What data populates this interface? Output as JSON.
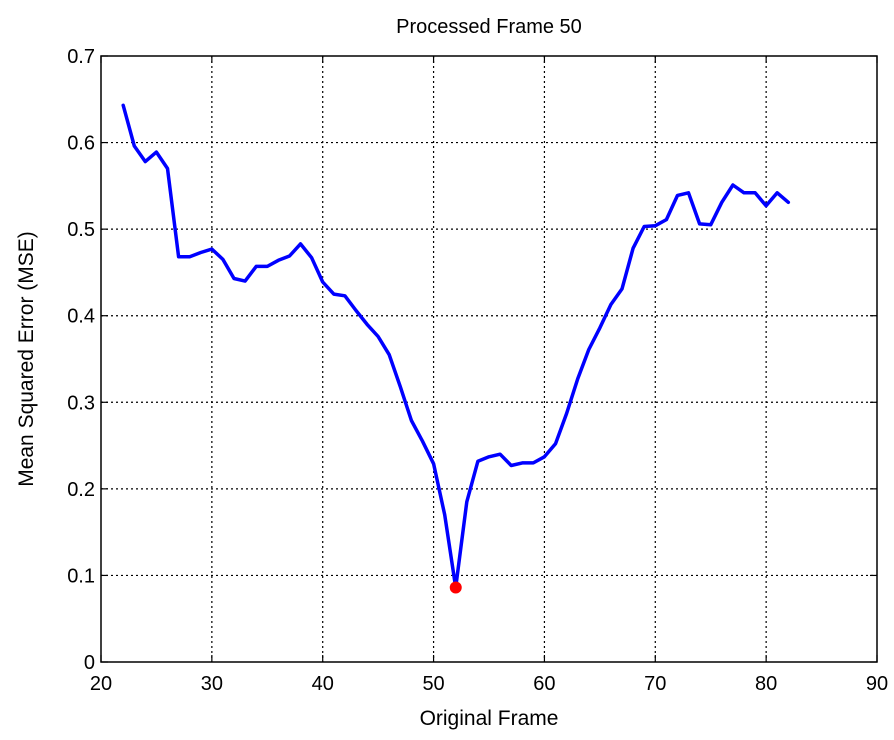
{
  "chart_data": {
    "type": "line",
    "title": "Processed Frame 50",
    "xlabel": "Original Frame",
    "ylabel": "Mean Squared Error (MSE)",
    "xlim": [
      20,
      90
    ],
    "ylim": [
      0,
      0.7
    ],
    "xticks": [
      "20",
      "30",
      "40",
      "50",
      "60",
      "70",
      "80",
      "90"
    ],
    "yticks": [
      "0",
      "0.1",
      "0.2",
      "0.3",
      "0.4",
      "0.5",
      "0.6",
      "0.7"
    ],
    "grid": true,
    "series": [
      {
        "color": "#0000ff",
        "x": [
          22,
          23,
          24,
          25,
          26,
          27,
          28,
          29,
          30,
          31,
          32,
          33,
          34,
          35,
          36,
          37,
          38,
          39,
          40,
          41,
          42,
          43,
          44,
          45,
          46,
          47,
          48,
          49,
          50,
          51,
          52,
          53,
          54,
          55,
          56,
          57,
          58,
          59,
          60,
          61,
          62,
          63,
          64,
          65,
          66,
          67,
          68,
          69,
          70,
          71,
          72,
          73,
          74,
          75,
          76,
          77,
          78,
          79,
          80,
          81,
          82
        ],
        "y": [
          0.643,
          0.596,
          0.578,
          0.589,
          0.57,
          0.468,
          0.468,
          0.473,
          0.477,
          0.465,
          0.443,
          0.44,
          0.457,
          0.457,
          0.464,
          0.469,
          0.483,
          0.467,
          0.439,
          0.425,
          0.423,
          0.406,
          0.39,
          0.376,
          0.355,
          0.318,
          0.279,
          0.255,
          0.229,
          0.17,
          0.086,
          0.185,
          0.232,
          0.237,
          0.24,
          0.227,
          0.23,
          0.23,
          0.237,
          0.252,
          0.287,
          0.327,
          0.361,
          0.386,
          0.413,
          0.431,
          0.478,
          0.503,
          0.504,
          0.511,
          0.539,
          0.542,
          0.506,
          0.505,
          0.531,
          0.551,
          0.542,
          0.542,
          0.527,
          0.542,
          0.531
        ]
      }
    ],
    "marker": {
      "x": 52,
      "y": 0.086,
      "color": "#ff0000"
    }
  }
}
